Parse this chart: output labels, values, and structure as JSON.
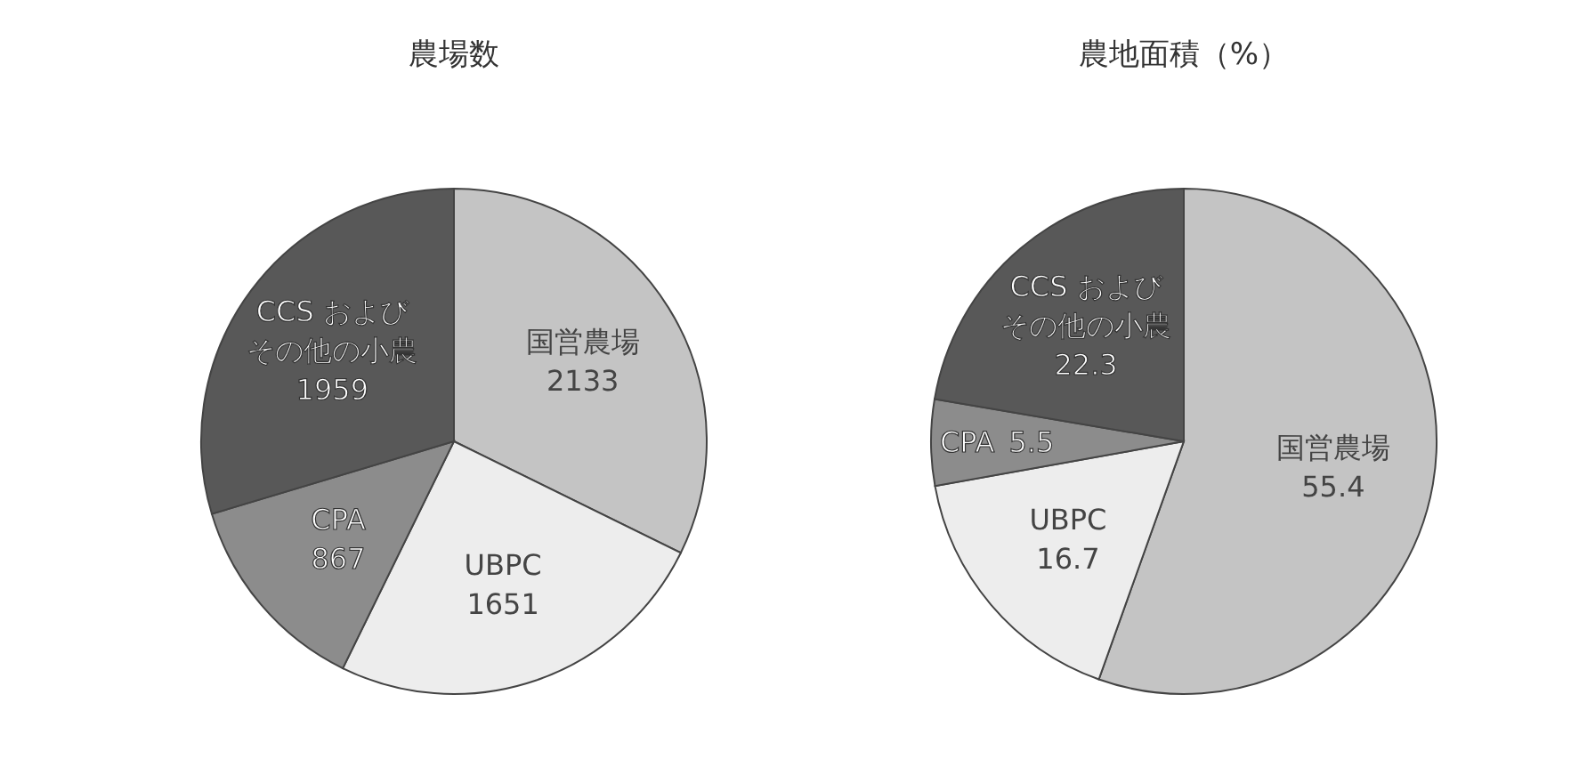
{
  "chart_data": [
    {
      "type": "pie",
      "title": "農場数",
      "categories": [
        "国営農場",
        "UBPC",
        "CPA",
        "CCS およびその他の小農"
      ],
      "values": [
        2133,
        1651,
        867,
        1959
      ],
      "colors": [
        "#c4c4c4",
        "#ededed",
        "#8c8c8c",
        "#585858"
      ],
      "data_labels": true
    },
    {
      "type": "pie",
      "title": "農地面積（%）",
      "categories": [
        "国営農場",
        "UBPC",
        "CPA",
        "CCS およびその他の小農"
      ],
      "values": [
        55.4,
        16.7,
        5.5,
        22.3
      ],
      "colors": [
        "#c4c4c4",
        "#ededed",
        "#8c8c8c",
        "#585858"
      ],
      "data_labels": true
    }
  ]
}
